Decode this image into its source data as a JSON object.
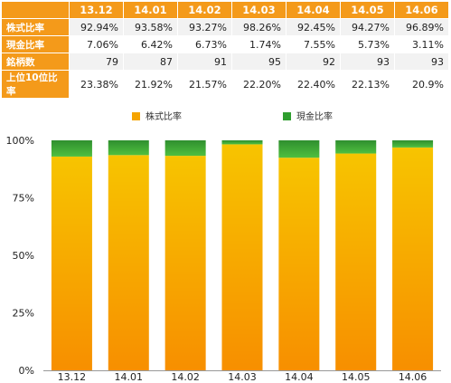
{
  "table": {
    "corner": "",
    "columns": [
      "13.12",
      "14.01",
      "14.02",
      "14.03",
      "14.04",
      "14.05",
      "14.06"
    ],
    "rows": [
      {
        "label": "株式比率",
        "values": [
          "92.94%",
          "93.58%",
          "93.27%",
          "98.26%",
          "92.45%",
          "94.27%",
          "96.89%"
        ]
      },
      {
        "label": "現金比率",
        "values": [
          "7.06%",
          "6.42%",
          "6.73%",
          "1.74%",
          "7.55%",
          "5.73%",
          "3.11%"
        ]
      },
      {
        "label": "銘柄数",
        "values": [
          "79",
          "87",
          "91",
          "95",
          "92",
          "93",
          "93"
        ]
      },
      {
        "label": "上位10位比率",
        "values": [
          "23.38%",
          "21.92%",
          "21.57%",
          "22.20%",
          "22.40%",
          "22.13%",
          "20.9%"
        ]
      }
    ]
  },
  "chart_data": {
    "type": "bar",
    "stacked": true,
    "percent": true,
    "categories": [
      "13.12",
      "14.01",
      "14.02",
      "14.03",
      "14.04",
      "14.05",
      "14.06"
    ],
    "series": [
      {
        "name": "株式比率",
        "color": "#f5a400",
        "values": [
          92.94,
          93.58,
          93.27,
          98.26,
          92.45,
          94.27,
          96.89
        ]
      },
      {
        "name": "現金比率",
        "color": "#2f9e2f",
        "values": [
          7.06,
          6.42,
          6.73,
          1.74,
          7.55,
          5.73,
          3.11
        ]
      }
    ],
    "yticks": [
      "0%",
      "25%",
      "50%",
      "75%",
      "100%"
    ],
    "ylim": [
      0,
      100
    ],
    "legend": "top",
    "grid": false
  }
}
